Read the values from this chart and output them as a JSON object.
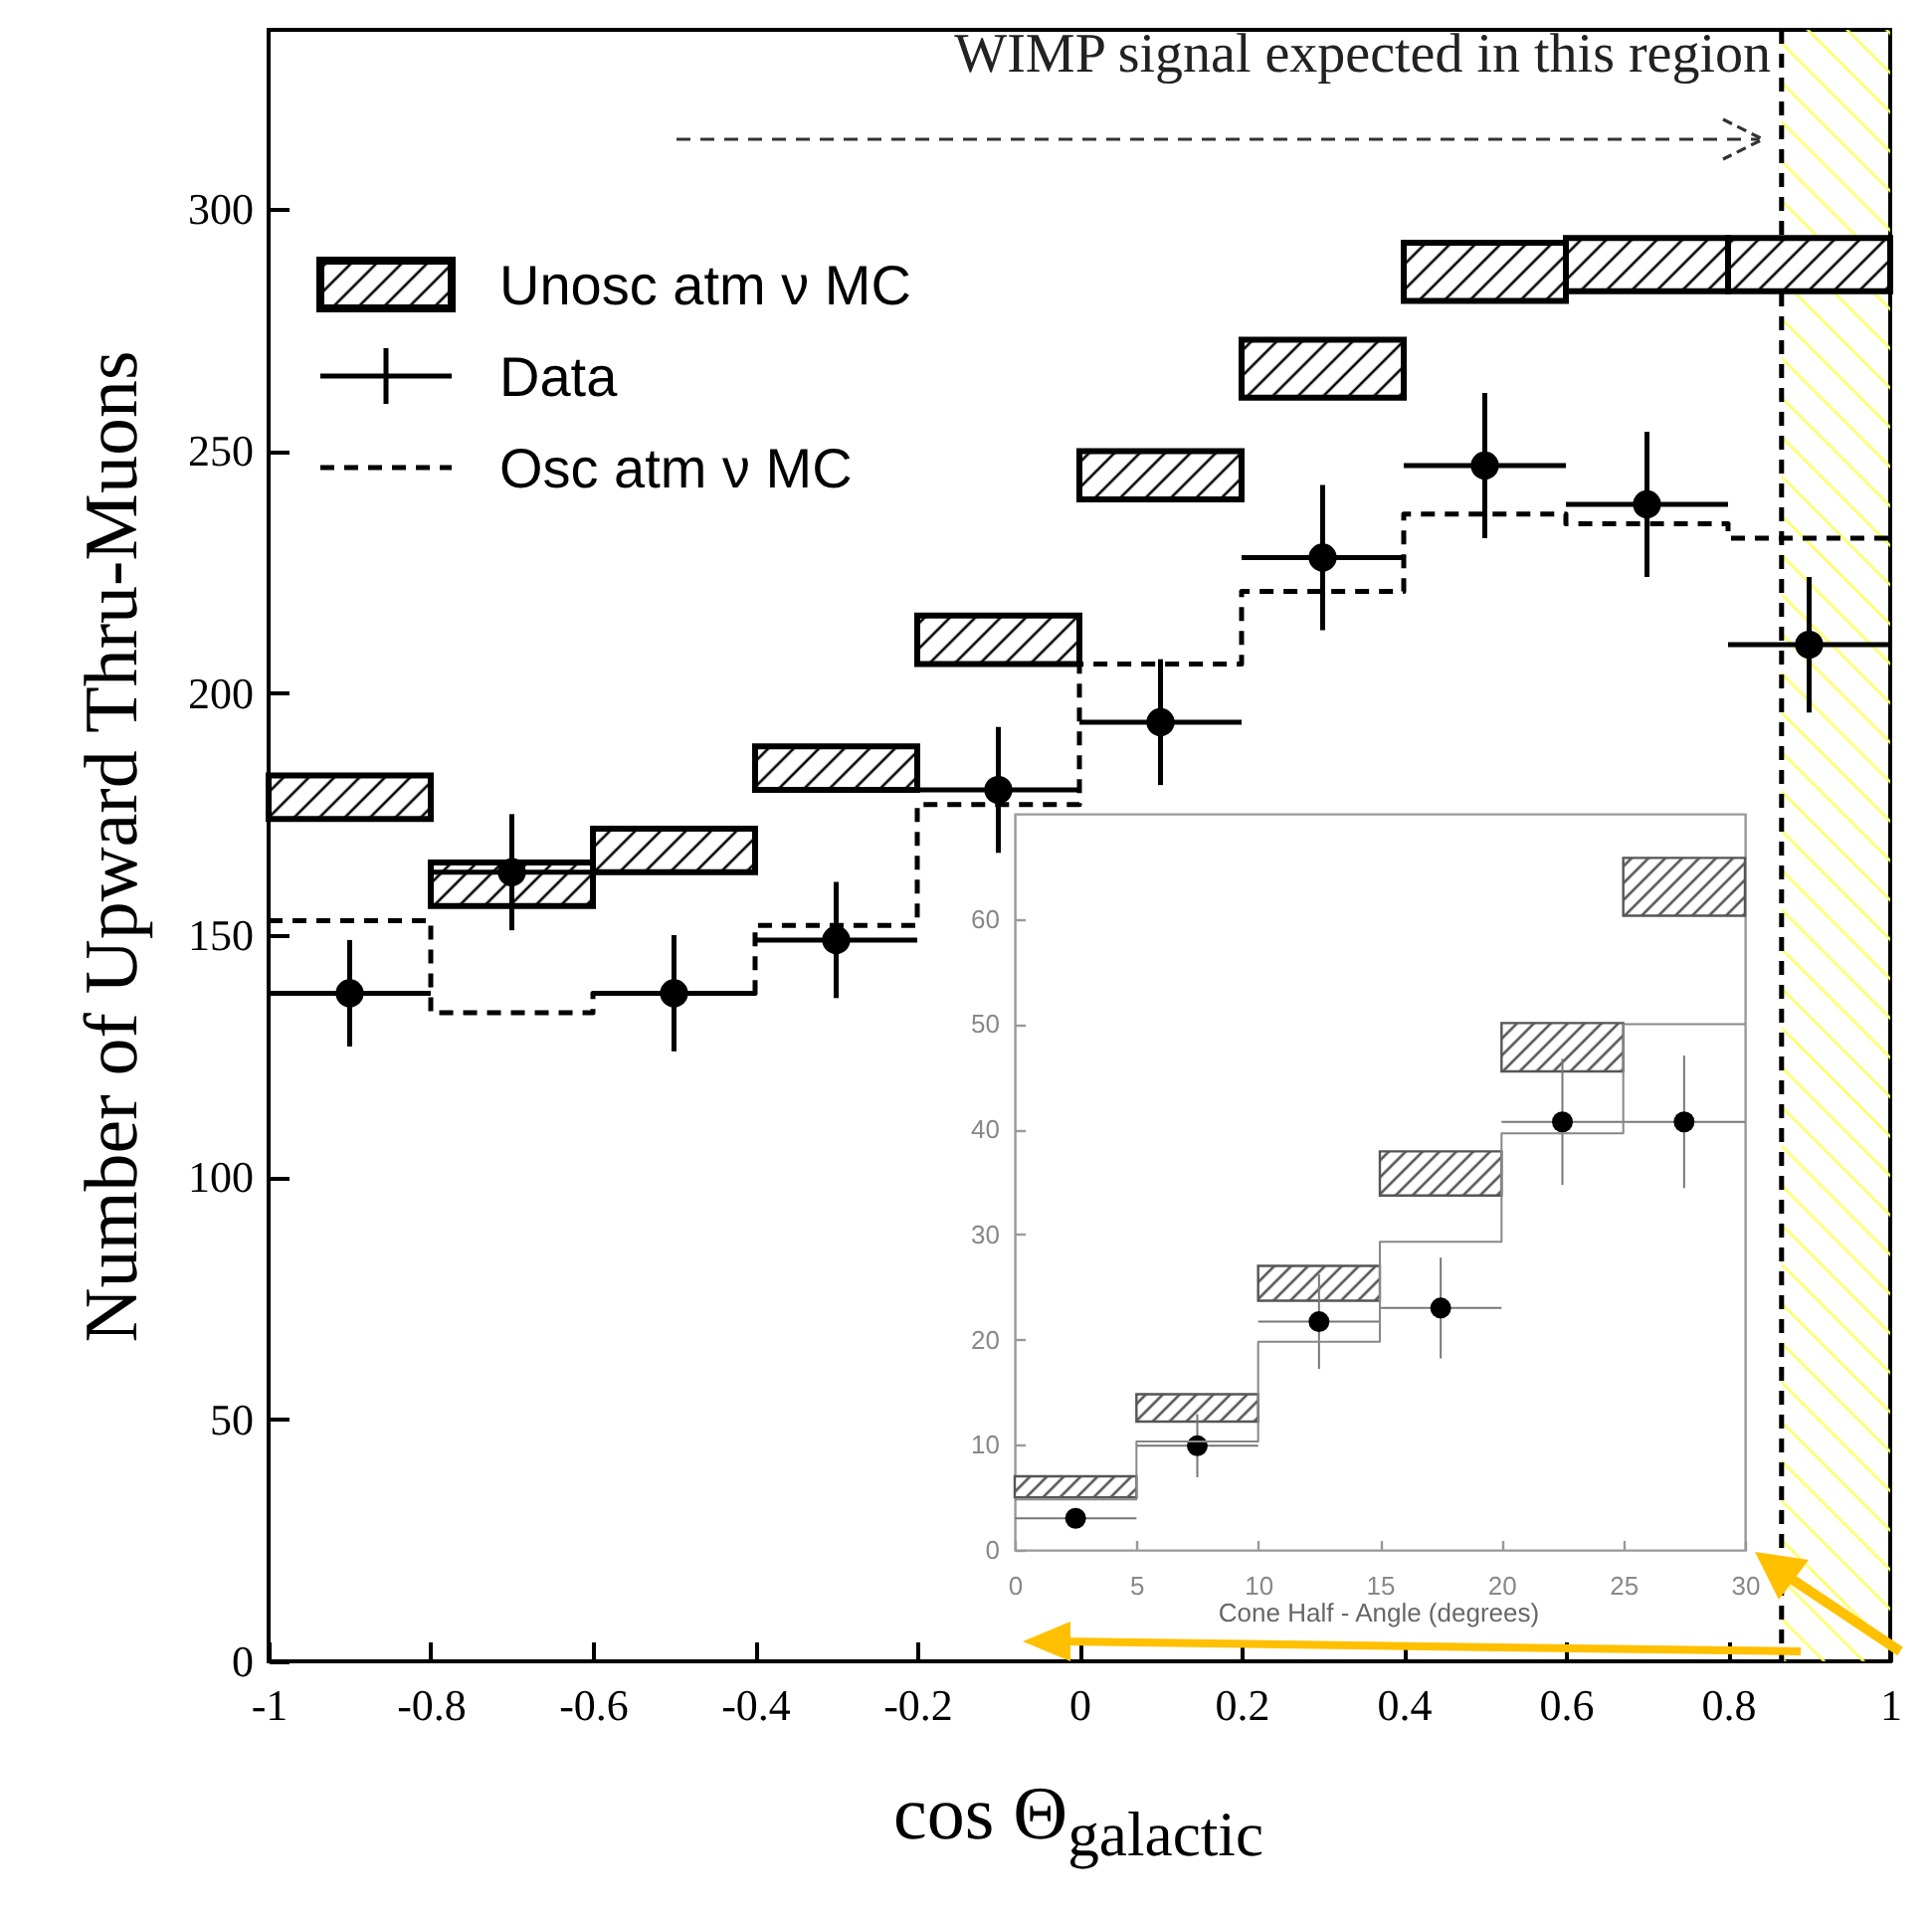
{
  "chart_data": [
    {
      "type": "bar",
      "ylabel": "Number of Upward Thru-Muons",
      "xlabel": "cos Θ$_{galactic}$",
      "xlim": [
        -1,
        1
      ],
      "xticks": [
        -1,
        -0.8,
        -0.6,
        -0.4,
        -0.2,
        0,
        0.2,
        0.4,
        0.6,
        0.8,
        1
      ],
      "ylim": [
        0,
        337
      ],
      "yticks": [
        0,
        50,
        100,
        150,
        200,
        250,
        300
      ],
      "legend": "top left",
      "annotations": [
        "WIMP signal expected in this region"
      ],
      "bands": [
        {
          "axis": "x",
          "from": 0.866,
          "to": 1,
          "color": "#ffff66"
        }
      ],
      "ref_lines": [
        {
          "axis": "x",
          "value": 0.866,
          "color": "#000000",
          "line_style": "dashed"
        }
      ],
      "series": [
        {
          "name": "Unosc atm ν MC",
          "color": "#000000",
          "x": [
            -0.9,
            -0.7,
            -0.5,
            -0.3,
            -0.1,
            0.1,
            0.3,
            0.5,
            0.7,
            0.9
          ],
          "base": [
            174,
            156,
            163,
            180,
            206,
            240,
            261,
            281,
            283,
            283
          ],
          "values": [
            9,
            9,
            9,
            9,
            10,
            10,
            12,
            12,
            11,
            11
          ]
        },
        {
          "name": "Data",
          "type": "scatter",
          "color": "#000000",
          "marker": "circle",
          "x": [
            -0.9,
            -0.7,
            -0.5,
            -0.3,
            -0.1,
            0.1,
            0.3,
            0.5,
            0.7,
            0.9
          ],
          "values": [
            138,
            163,
            138,
            149,
            180,
            194,
            228,
            247,
            239,
            210
          ],
          "errors": [
            11,
            12,
            12,
            12,
            13,
            13,
            15,
            15,
            15,
            14
          ],
          "xerrors": [
            0.1,
            0.1,
            0.1,
            0.1,
            0.1,
            0.1,
            0.1,
            0.1,
            0.1,
            0.1
          ]
        },
        {
          "name": "Osc atm ν MC",
          "type": "step",
          "color": "#000000",
          "line_style": "dashed",
          "x": [
            -1,
            -0.8,
            -0.6,
            -0.4,
            -0.2,
            0,
            0.2,
            0.4,
            0.6,
            0.8,
            1
          ],
          "values": [
            153,
            134,
            138,
            152,
            177,
            206,
            221,
            237,
            235,
            232,
            232
          ]
        }
      ]
    },
    {
      "type": "bar",
      "xlabel": "Cone Half - Angle (degrees)",
      "xlim": [
        0,
        30
      ],
      "xticks": [
        0,
        5,
        10,
        15,
        20,
        25,
        30
      ],
      "ylim": [
        0,
        70
      ],
      "yticks": [
        0,
        10,
        20,
        30,
        40,
        50,
        60
      ],
      "series": [
        {
          "color": "#555555",
          "x": [
            2.5,
            7.5,
            12.5,
            17.5,
            22.5,
            27.5
          ],
          "base": [
            5,
            12.2,
            23.7,
            33.7,
            45.5,
            60.3
          ],
          "values": [
            2,
            2.6,
            3.3,
            4.2,
            4.6,
            5.5
          ]
        },
        {
          "type": "scatter",
          "color": "#000000",
          "marker": "circle",
          "x": [
            2.5,
            7.5,
            12.5,
            17.5,
            22.5,
            27.5
          ],
          "values": [
            3,
            9.9,
            21.7,
            23,
            40.7,
            40.7
          ],
          "errors": [
            null,
            3,
            4.5,
            4.8,
            6,
            6.3
          ],
          "xerrors": [
            2.5,
            2.5,
            2.5,
            2.5,
            2.5,
            2.5
          ]
        },
        {
          "type": "step",
          "color": "#888888",
          "line_style": "solid",
          "x": [
            0,
            5,
            10,
            15,
            20,
            25,
            30
          ],
          "values": [
            4.8,
            10.3,
            19.8,
            29.3,
            39.6,
            50,
            50
          ]
        }
      ]
    }
  ]
}
